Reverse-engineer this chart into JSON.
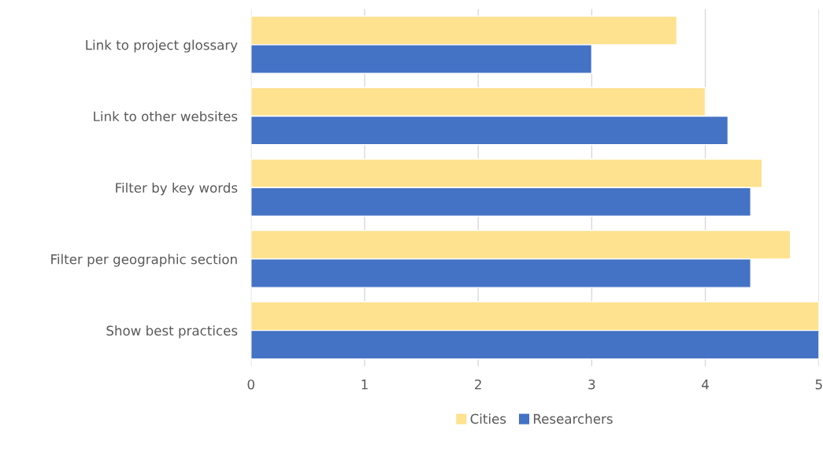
{
  "chart_data": {
    "type": "bar",
    "orientation": "horizontal",
    "categories": [
      "Link to project glossary",
      "Link to other websites",
      "Filter by key words",
      "Filter per geographic section",
      "Show best practices"
    ],
    "series": [
      {
        "name": "Cities",
        "color": "#ffe28f",
        "values": [
          3.75,
          4.0,
          4.5,
          4.75,
          5.0
        ]
      },
      {
        "name": "Researchers",
        "color": "#4472c4",
        "values": [
          3.0,
          4.2,
          4.4,
          4.4,
          5.0
        ]
      }
    ],
    "xlim": [
      0,
      5
    ],
    "xticks": [
      0,
      1,
      2,
      3,
      4,
      5
    ],
    "grid": "x",
    "legend": "bottom"
  }
}
